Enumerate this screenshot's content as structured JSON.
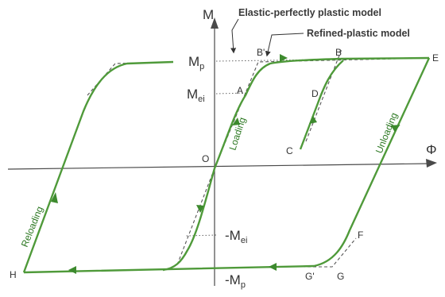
{
  "axes": {
    "y_label": "M",
    "x_label": "Φ",
    "origin_label": "O"
  },
  "levels": {
    "mp_label": "M",
    "mp_sub": "p",
    "mei_label": "M",
    "mei_sub": "ei",
    "neg_mei_label": "-M",
    "neg_mei_sub": "ei",
    "neg_mp_label": "-M",
    "neg_mp_sub": "p"
  },
  "models": {
    "elastic": "Elastic-perfectly plastic model",
    "refined": "Refined-plastic model"
  },
  "points": {
    "A": "A",
    "B_prime": "B'",
    "B": "B",
    "C": "C",
    "D": "D",
    "E": "E",
    "F": "F",
    "G_prime": "G'",
    "G": "G",
    "H": "H"
  },
  "curve_labels": {
    "loading": "Loading",
    "unloading": "Unloading",
    "reloading": "Reloading"
  },
  "colors": {
    "curve": "#4f9a3a",
    "axis": "#4a4a4a",
    "text": "#333333"
  }
}
